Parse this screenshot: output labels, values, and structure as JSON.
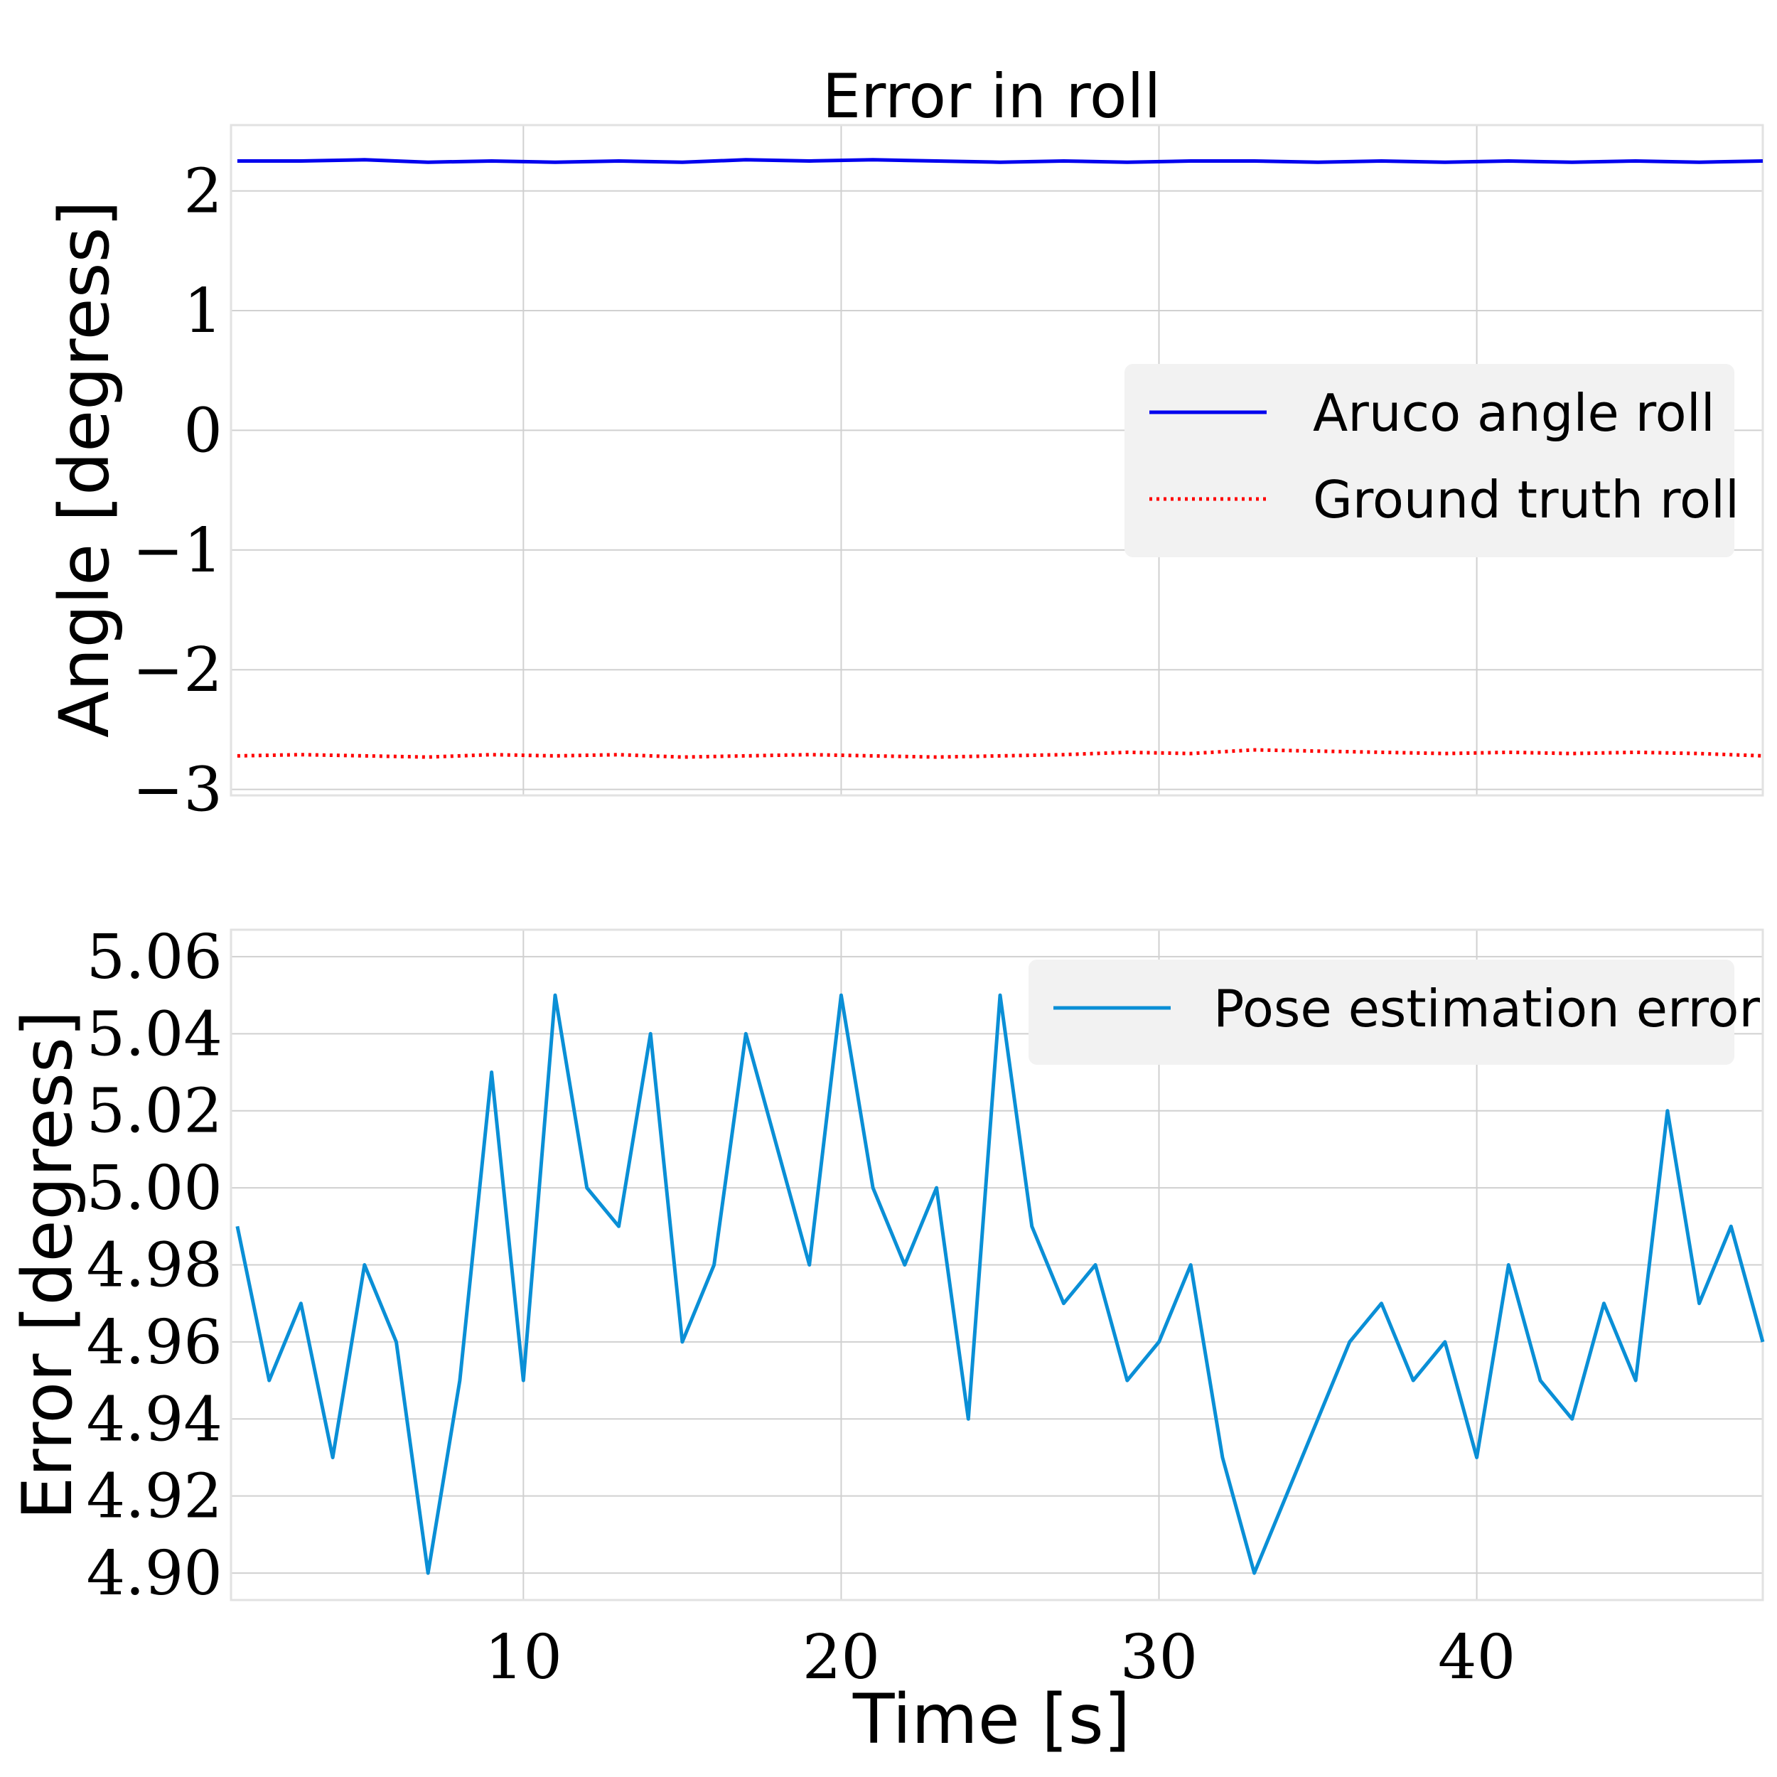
{
  "chart_data": [
    {
      "type": "line",
      "title": "Error in roll",
      "xlabel": "",
      "ylabel": "Angle [degress]",
      "xlim": [
        0.8,
        49
      ],
      "ylim": [
        -3.05,
        2.55
      ],
      "x_ticks": [
        "10",
        "20",
        "30",
        "40"
      ],
      "y_ticks": [
        "2",
        "1",
        "0",
        "−1",
        "−2",
        "−3"
      ],
      "grid": true,
      "legend_position": "center-right",
      "x": [
        1,
        3,
        5,
        7,
        9,
        11,
        13,
        15,
        17,
        19,
        21,
        23,
        25,
        27,
        29,
        31,
        33,
        35,
        37,
        39,
        41,
        43,
        45,
        47,
        49
      ],
      "series": [
        {
          "name": "Aruco angle roll",
          "color": "#0000ee",
          "style": "solid",
          "values": [
            2.25,
            2.25,
            2.26,
            2.24,
            2.25,
            2.24,
            2.25,
            2.24,
            2.26,
            2.25,
            2.26,
            2.25,
            2.24,
            2.25,
            2.24,
            2.25,
            2.25,
            2.24,
            2.25,
            2.24,
            2.25,
            2.24,
            2.25,
            2.24,
            2.25
          ]
        },
        {
          "name": "Ground truth roll",
          "color": "#ff0000",
          "style": "dotted",
          "values": [
            -2.72,
            -2.71,
            -2.72,
            -2.73,
            -2.71,
            -2.72,
            -2.71,
            -2.73,
            -2.72,
            -2.71,
            -2.72,
            -2.73,
            -2.72,
            -2.71,
            -2.69,
            -2.7,
            -2.67,
            -2.68,
            -2.69,
            -2.7,
            -2.69,
            -2.7,
            -2.69,
            -2.7,
            -2.72
          ]
        }
      ]
    },
    {
      "type": "line",
      "title": "",
      "xlabel": "Time [s]",
      "ylabel": "Error [degress]",
      "xlim": [
        0.8,
        49
      ],
      "ylim": [
        4.893,
        5.067
      ],
      "x_ticks": [
        "10",
        "20",
        "30",
        "40"
      ],
      "y_ticks": [
        "5.06",
        "5.04",
        "5.02",
        "5.00",
        "4.98",
        "4.96",
        "4.94",
        "4.92",
        "4.90"
      ],
      "grid": true,
      "legend_position": "upper-right",
      "x": [
        1,
        2,
        3,
        4,
        5,
        6,
        7,
        8,
        9,
        10,
        11,
        12,
        13,
        14,
        15,
        16,
        17,
        18,
        19,
        20,
        21,
        22,
        23,
        24,
        25,
        26,
        27,
        28,
        29,
        30,
        31,
        32,
        33,
        34,
        35,
        36,
        37,
        38,
        39,
        40,
        41,
        42,
        43,
        44,
        45,
        46,
        47,
        48,
        49
      ],
      "series": [
        {
          "name": "Pose estimation error",
          "color": "#0a8fd6",
          "style": "solid",
          "values": [
            4.99,
            4.95,
            4.97,
            4.93,
            4.98,
            4.96,
            4.9,
            4.95,
            5.03,
            4.95,
            5.05,
            5.0,
            4.99,
            5.04,
            4.96,
            4.98,
            5.04,
            5.01,
            4.98,
            5.05,
            5.0,
            4.98,
            5.0,
            4.94,
            5.05,
            4.99,
            4.97,
            4.98,
            4.95,
            4.96,
            4.98,
            4.93,
            4.9,
            4.92,
            4.94,
            4.96,
            4.97,
            4.95,
            4.96,
            4.93,
            4.98,
            4.95,
            4.94,
            4.97,
            4.95,
            5.02,
            4.97,
            4.99,
            4.96
          ]
        }
      ]
    }
  ]
}
